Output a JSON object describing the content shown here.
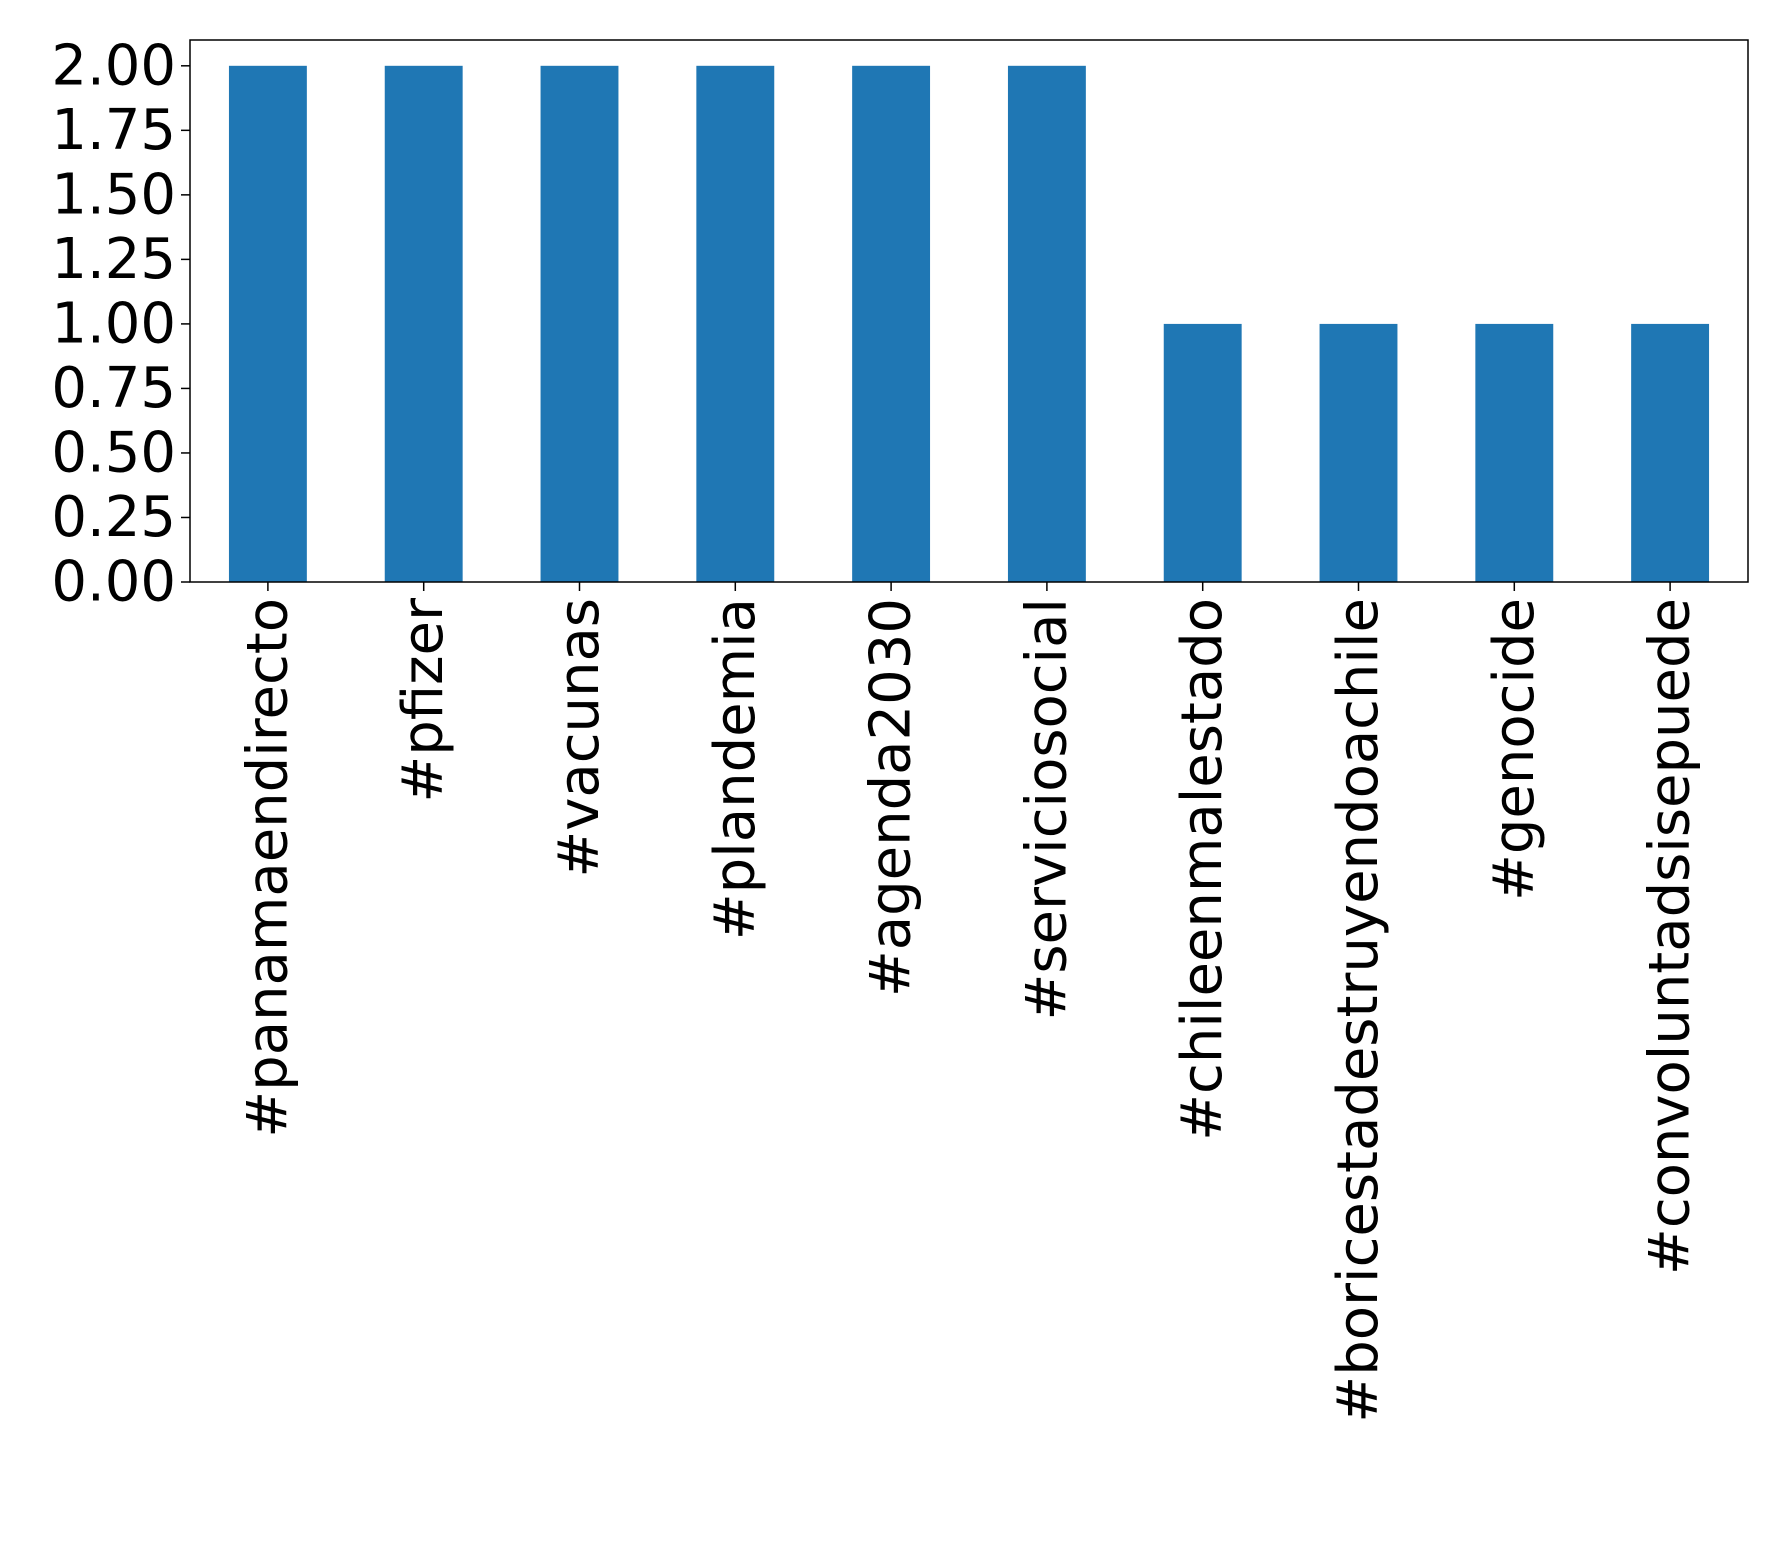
{
  "chart_data": {
    "type": "bar",
    "categories": [
      "#panamaendirecto",
      "#pfizer",
      "#vacunas",
      "#plandemia",
      "#agenda2030",
      "#serviciosocial",
      "#chileenmalestado",
      "#boricestadestruyendoachile",
      "#genocide",
      "#convoluntadsisepuede"
    ],
    "values": [
      2,
      2,
      2,
      2,
      2,
      2,
      1,
      1,
      1,
      1
    ],
    "title": "",
    "xlabel": "",
    "ylabel": "",
    "ylim": [
      0,
      2.1
    ],
    "yticks": [
      "0.00",
      "0.25",
      "0.50",
      "0.75",
      "1.00",
      "1.25",
      "1.50",
      "1.75",
      "2.00"
    ],
    "grid": false,
    "colors": {
      "bar": "#1f77b4",
      "axis": "#000000",
      "background": "#ffffff"
    }
  }
}
